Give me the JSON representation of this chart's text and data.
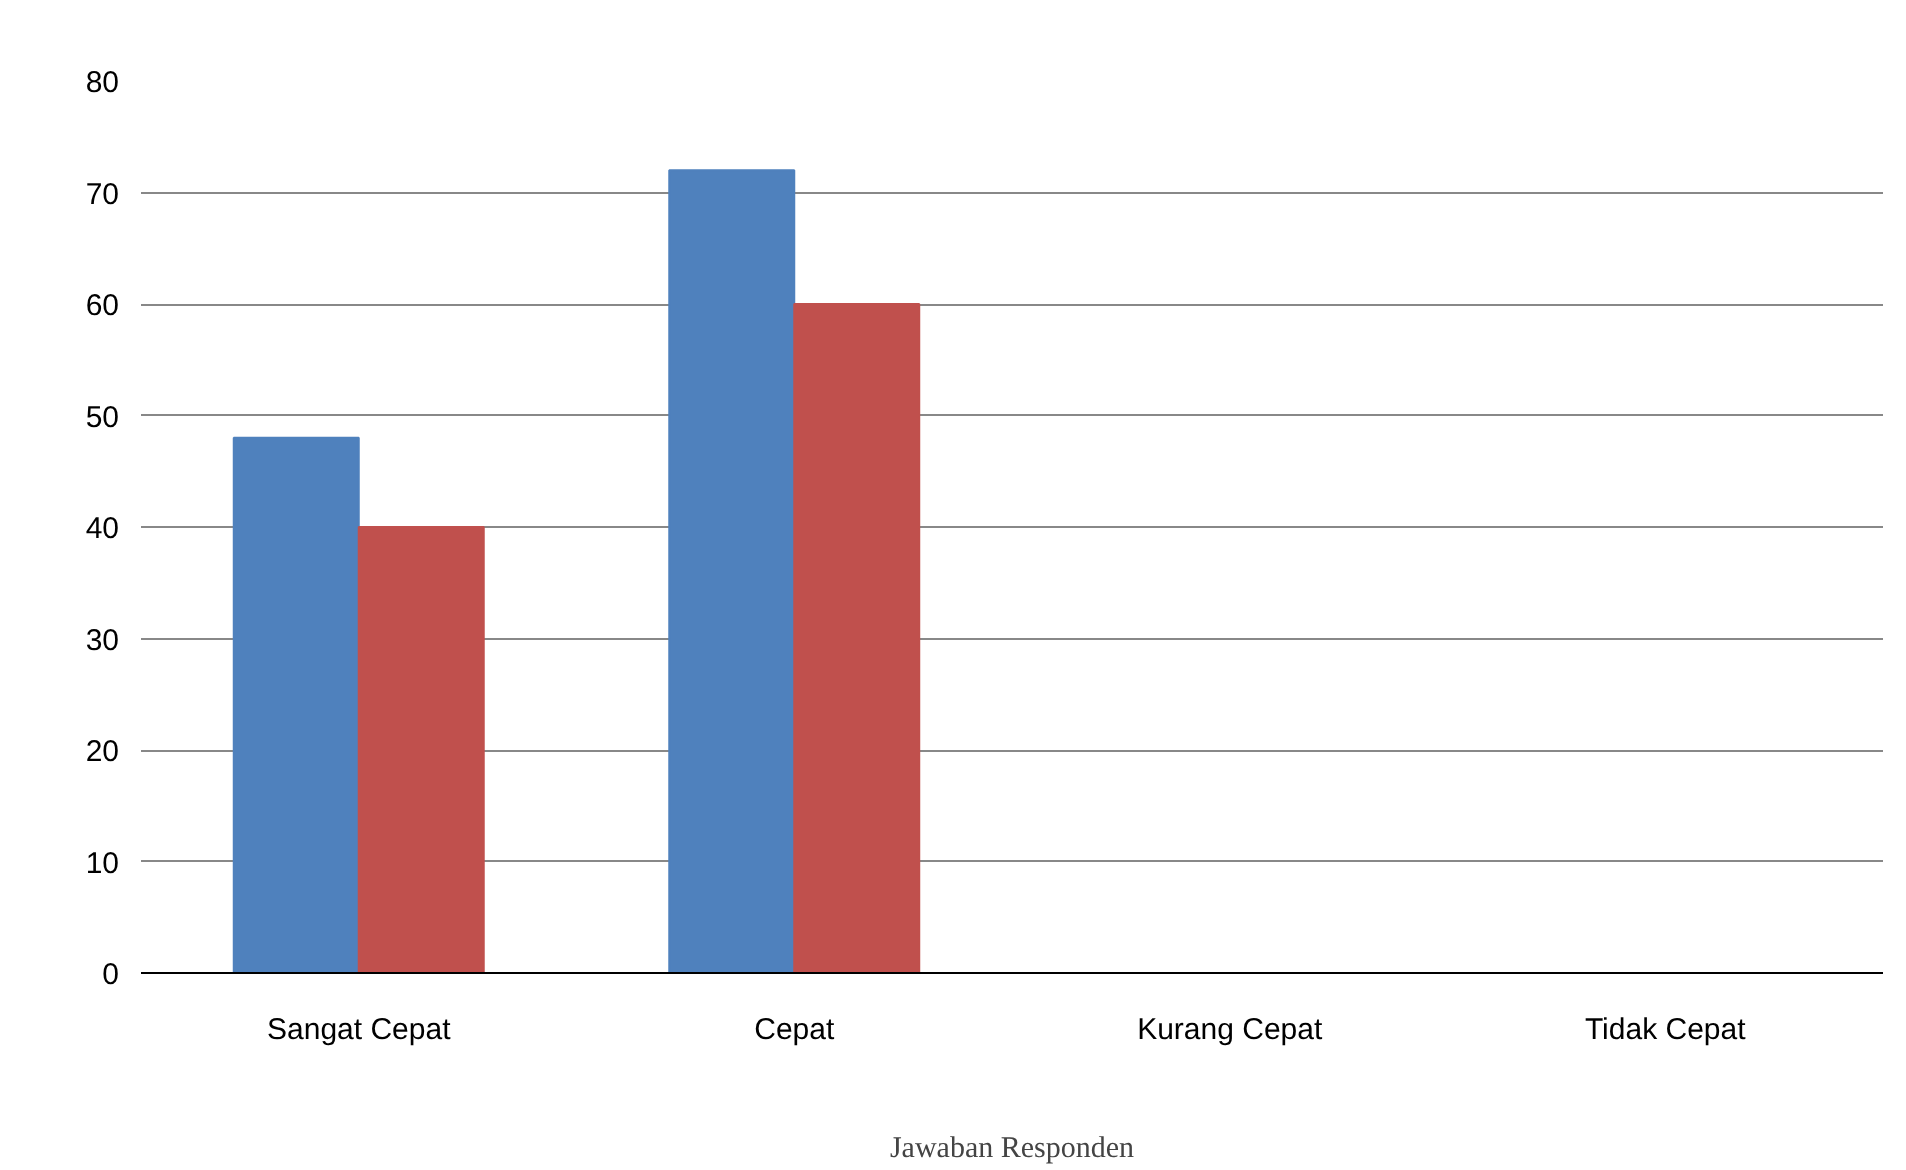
{
  "chart_data": {
    "type": "bar",
    "xlabel": "Jawaban Responden",
    "categories": [
      "Sangat Cepat",
      "Cepat",
      "Kurang Cepat",
      "Tidak Cepat"
    ],
    "series": [
      {
        "color": "#4f81bd",
        "values": [
          48,
          72,
          0,
          0
        ]
      },
      {
        "color": "#c0504d",
        "values": [
          40,
          60,
          0,
          0
        ]
      }
    ],
    "ylim": [
      0,
      80
    ],
    "yticks": [
      0,
      10,
      20,
      30,
      40,
      50,
      60,
      70,
      80
    ],
    "grid": "y"
  }
}
